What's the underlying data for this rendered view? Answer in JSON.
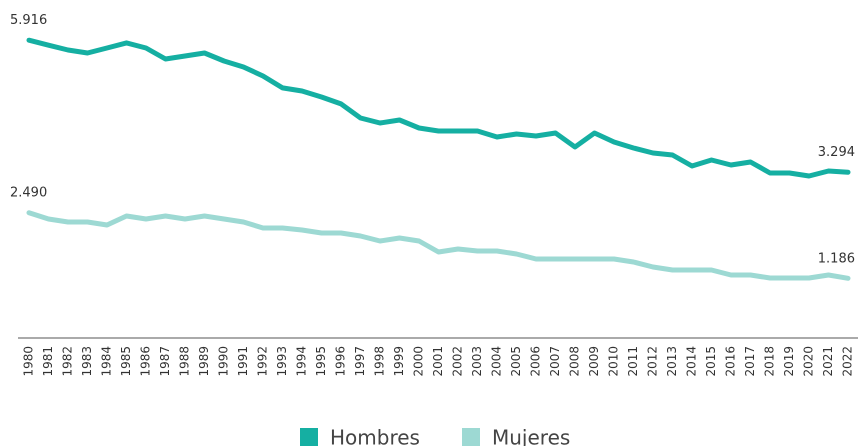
{
  "chart_data": {
    "type": "line",
    "categories": [
      "1980",
      "1981",
      "1982",
      "1983",
      "1984",
      "1985",
      "1986",
      "1987",
      "1988",
      "1989",
      "1990",
      "1991",
      "1992",
      "1993",
      "1994",
      "1995",
      "1996",
      "1997",
      "1998",
      "1999",
      "2000",
      "2001",
      "2002",
      "2003",
      "2004",
      "2005",
      "2006",
      "2007",
      "2008",
      "2009",
      "2010",
      "2011",
      "2012",
      "2013",
      "2014",
      "2015",
      "2016",
      "2017",
      "2018",
      "2019",
      "2020",
      "2021",
      "2022"
    ],
    "ylim": [
      0,
      6000
    ],
    "series": [
      {
        "name": "Hombres",
        "color": "#15afa2",
        "values": [
          5916,
          5817,
          5722,
          5663,
          5762,
          5862,
          5762,
          5544,
          5603,
          5663,
          5504,
          5385,
          5206,
          4968,
          4908,
          4789,
          4650,
          4371,
          4272,
          4332,
          4173,
          4113,
          4113,
          4113,
          3994,
          4053,
          4014,
          4073,
          3795,
          4073,
          3894,
          3775,
          3676,
          3636,
          3418,
          3537,
          3438,
          3497,
          3279,
          3279,
          3219,
          3318,
          3294
        ],
        "value_labels": [
          "5.916",
          null,
          null,
          null,
          null,
          null,
          null,
          null,
          null,
          null,
          null,
          null,
          null,
          null,
          null,
          null,
          null,
          null,
          null,
          null,
          null,
          null,
          null,
          null,
          null,
          null,
          null,
          null,
          null,
          null,
          null,
          null,
          null,
          null,
          null,
          null,
          null,
          null,
          null,
          null,
          null,
          null,
          "3.294"
        ]
      },
      {
        "name": "Mujeres",
        "color": "#9dd9d3",
        "values": [
          2490,
          2365,
          2305,
          2305,
          2245,
          2424,
          2365,
          2424,
          2365,
          2424,
          2365,
          2305,
          2186,
          2186,
          2146,
          2086,
          2086,
          2027,
          1927,
          1987,
          1927,
          1709,
          1768,
          1729,
          1729,
          1669,
          1570,
          1570,
          1570,
          1570,
          1570,
          1510,
          1411,
          1351,
          1351,
          1351,
          1252,
          1252,
          1192,
          1192,
          1192,
          1252,
          1186
        ],
        "value_labels": [
          "2.490",
          null,
          null,
          null,
          null,
          null,
          null,
          null,
          null,
          null,
          null,
          null,
          null,
          null,
          null,
          null,
          null,
          null,
          null,
          null,
          null,
          null,
          null,
          null,
          null,
          null,
          null,
          null,
          null,
          null,
          null,
          null,
          null,
          null,
          null,
          null,
          null,
          null,
          null,
          null,
          null,
          null,
          "1.186"
        ]
      }
    ]
  }
}
